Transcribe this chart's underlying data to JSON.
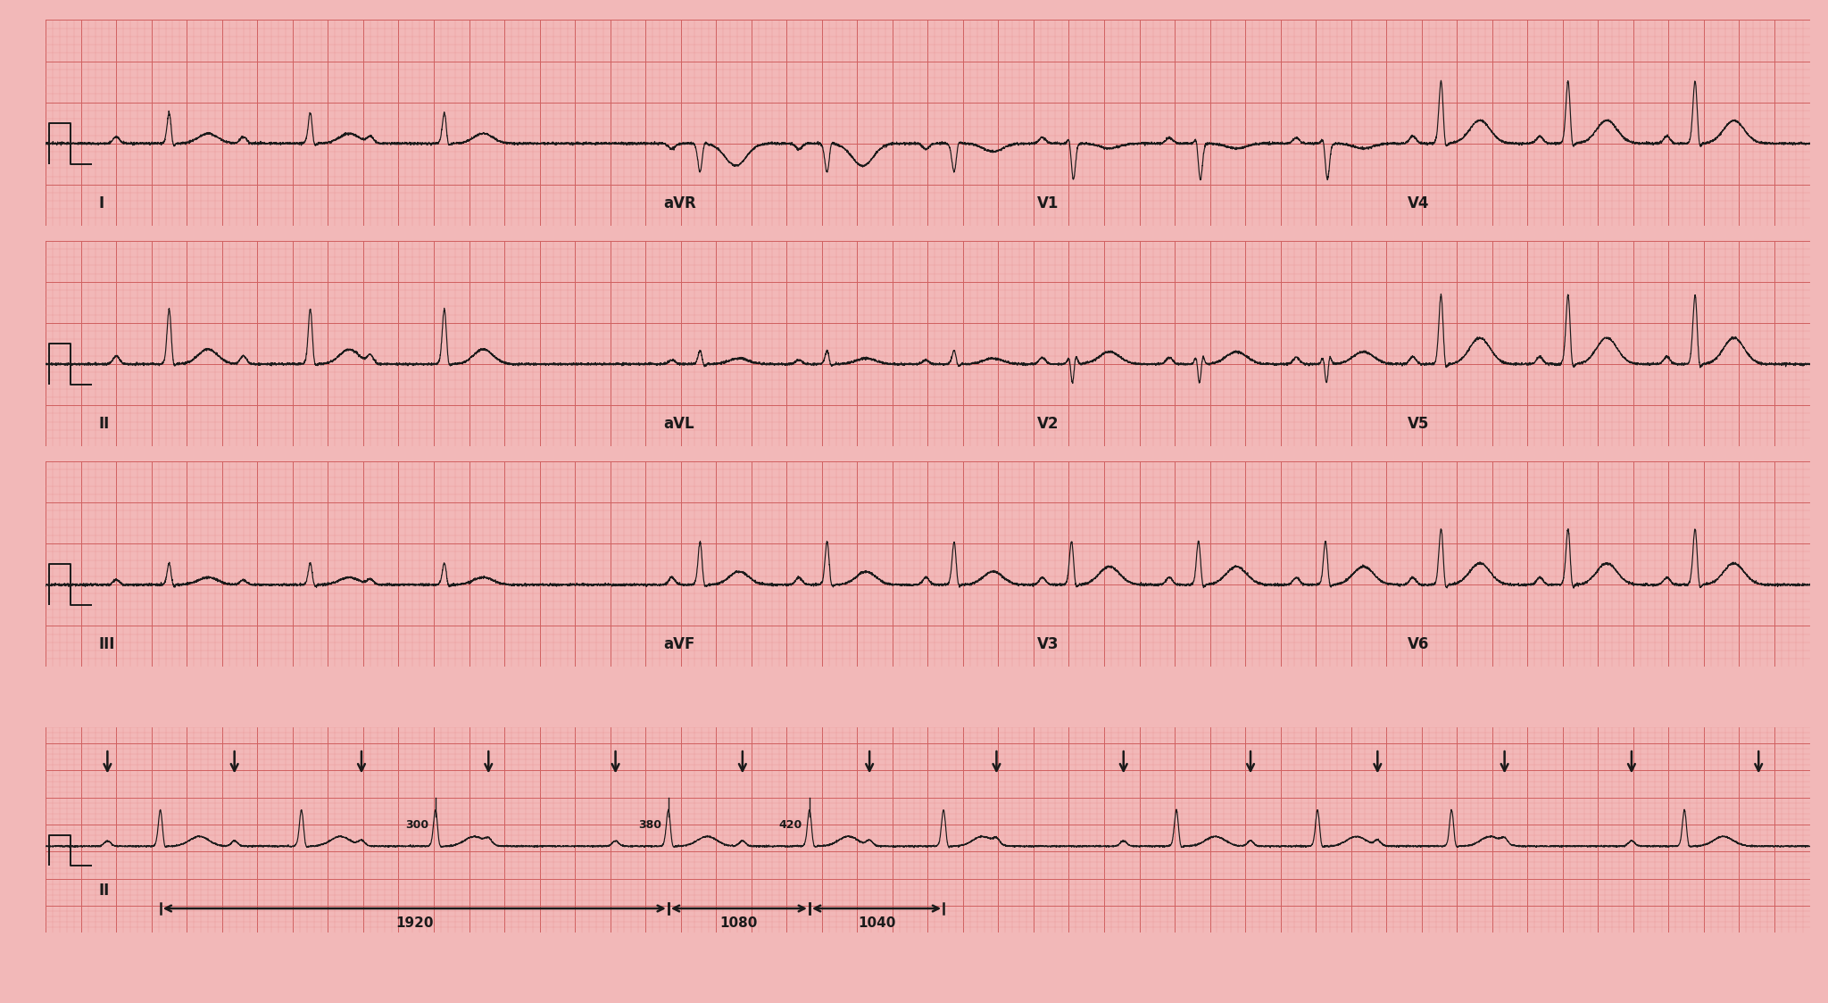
{
  "bg_color": "#f2b8b8",
  "grid_major_color": "#d06060",
  "grid_minor_color": "#e89090",
  "ecg_color": "#1a1a1a",
  "text_color": "#1a1a1a",
  "fig_width": 20.48,
  "fig_height": 11.24,
  "pp_interval": 0.72,
  "prs_mobitz": [
    0.3,
    0.38,
    0.42
  ],
  "row_labels_left": [
    "I",
    "II",
    "III",
    "II"
  ],
  "lead_labels": [
    [
      "aVR",
      "V1",
      "V4"
    ],
    [
      "aVL",
      "V2",
      "V5"
    ],
    [
      "aVF",
      "V3",
      "V6"
    ]
  ],
  "pr_annotation_labels": [
    "300",
    "380",
    "420"
  ],
  "interval_labels": [
    "1920",
    "1080",
    "1040"
  ],
  "major_grid_s": 0.2,
  "minor_grid_s": 0.04,
  "x_max": 10.0,
  "y_min": -1.0,
  "y_max": 1.5
}
